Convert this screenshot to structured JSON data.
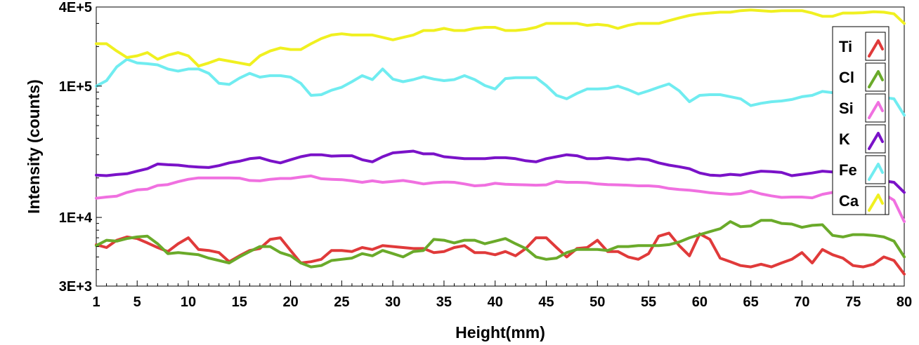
{
  "chart_data": {
    "type": "line",
    "title": "",
    "xlabel": "Height(mm)",
    "ylabel": "Intensity (counts)",
    "yscale": "log",
    "xlim": [
      1,
      80
    ],
    "ylim": [
      3000,
      400000
    ],
    "x_ticks": [
      1,
      5,
      10,
      15,
      20,
      25,
      30,
      35,
      40,
      45,
      50,
      55,
      60,
      65,
      70,
      75,
      80
    ],
    "y_ticks": [
      {
        "value": 3000,
        "label": "3E+3"
      },
      {
        "value": 10000,
        "label": "1E+4"
      },
      {
        "value": 100000,
        "label": "1E+5"
      },
      {
        "value": 400000,
        "label": "4E+5"
      }
    ],
    "legend_position": "right",
    "x": [
      1,
      2,
      3,
      4,
      5,
      6,
      7,
      8,
      9,
      10,
      11,
      12,
      13,
      14,
      15,
      16,
      17,
      18,
      19,
      20,
      21,
      22,
      23,
      24,
      25,
      26,
      27,
      28,
      29,
      30,
      31,
      32,
      33,
      34,
      35,
      36,
      37,
      38,
      39,
      40,
      41,
      42,
      43,
      44,
      45,
      46,
      47,
      48,
      49,
      50,
      51,
      52,
      53,
      54,
      55,
      56,
      57,
      58,
      59,
      60,
      61,
      62,
      63,
      64,
      65,
      66,
      67,
      68,
      69,
      70,
      71,
      72,
      73,
      74,
      75,
      76,
      77,
      78,
      79,
      80
    ],
    "series": [
      {
        "name": "Ti",
        "color": "#e03a3a",
        "values": [
          6200,
          5900,
          6700,
          7100,
          6900,
          6400,
          5900,
          5500,
          6300,
          7000,
          5700,
          5600,
          5400,
          4600,
          5100,
          5600,
          5800,
          6800,
          7000,
          5600,
          4500,
          4600,
          4800,
          5600,
          5600,
          5500,
          5900,
          5700,
          6100,
          6000,
          5900,
          5800,
          5800,
          5400,
          5500,
          5900,
          6100,
          5400,
          5400,
          5200,
          5500,
          5100,
          5800,
          7000,
          7000,
          5900,
          5000,
          5800,
          5900,
          6700,
          5500,
          5500,
          5000,
          4800,
          5300,
          7200,
          7600,
          6100,
          5100,
          7500,
          6800,
          4900,
          4600,
          4300,
          4200,
          4400,
          4200,
          4500,
          4800,
          5400,
          4500,
          5700,
          5200,
          4900,
          4300,
          4200,
          4400,
          5000,
          4700,
          3700
        ]
      },
      {
        "name": "Cl",
        "color": "#6aaa2a",
        "values": [
          6100,
          6700,
          6600,
          6900,
          7100,
          7200,
          6300,
          5300,
          5400,
          5300,
          5200,
          4900,
          4700,
          4500,
          5000,
          5500,
          6000,
          6000,
          5400,
          5100,
          4500,
          4200,
          4300,
          4700,
          4800,
          4900,
          5300,
          5100,
          5600,
          5300,
          5000,
          5500,
          5600,
          6800,
          6700,
          6400,
          6700,
          6700,
          6300,
          6600,
          6900,
          6300,
          5800,
          5000,
          4800,
          4900,
          5400,
          5700,
          5700,
          5700,
          5600,
          6000,
          6000,
          6100,
          6100,
          6100,
          6200,
          6500,
          7000,
          7400,
          7800,
          8200,
          9300,
          8500,
          8600,
          9500,
          9500,
          9000,
          8900,
          8400,
          8700,
          8800,
          7300,
          7100,
          7400,
          7400,
          7300,
          7100,
          6600,
          5000
        ]
      },
      {
        "name": "Si",
        "color": "#f070e0",
        "values": [
          14000,
          14300,
          14500,
          15500,
          16200,
          16400,
          17500,
          17800,
          18700,
          19500,
          20000,
          20000,
          20000,
          20000,
          19900,
          19100,
          19000,
          19500,
          19800,
          19800,
          20300,
          20700,
          19700,
          19500,
          19400,
          19000,
          18500,
          19000,
          18500,
          18800,
          19100,
          18600,
          18000,
          18400,
          18600,
          18500,
          18000,
          17400,
          17600,
          18200,
          17900,
          17800,
          17700,
          17600,
          17700,
          18800,
          18500,
          18500,
          18400,
          18000,
          17800,
          17700,
          17600,
          17400,
          17400,
          17200,
          16600,
          16300,
          16100,
          15800,
          15400,
          15200,
          15000,
          15200,
          15900,
          15100,
          14600,
          14200,
          14300,
          14300,
          14100,
          15000,
          15500,
          15900,
          15600,
          15500,
          15500,
          15100,
          13500,
          9300
        ]
      },
      {
        "name": "K",
        "color": "#7a12c8",
        "values": [
          21000,
          20800,
          21200,
          21500,
          22500,
          23500,
          25500,
          25200,
          25000,
          24500,
          24200,
          24000,
          24800,
          26000,
          26800,
          28000,
          28500,
          27000,
          26000,
          27500,
          29000,
          30000,
          30000,
          29300,
          29500,
          29500,
          27500,
          26500,
          29000,
          31000,
          31500,
          32000,
          30500,
          30500,
          29000,
          28500,
          28000,
          28000,
          28000,
          28500,
          28500,
          28000,
          27000,
          26500,
          28000,
          29000,
          30000,
          29500,
          28000,
          28000,
          28500,
          28000,
          27500,
          28000,
          27500,
          26000,
          25000,
          24300,
          23500,
          21800,
          21000,
          20800,
          21300,
          21000,
          21800,
          22500,
          22300,
          22000,
          20800,
          21300,
          21800,
          22500,
          22200,
          22200,
          21500,
          20500,
          20000,
          19000,
          18500,
          15500
        ]
      },
      {
        "name": "Fe",
        "color": "#70ecf0",
        "values": [
          100000,
          110000,
          140000,
          160000,
          150000,
          148000,
          145000,
          135000,
          130000,
          135000,
          135000,
          125000,
          105000,
          103000,
          115000,
          125000,
          117000,
          120000,
          120000,
          117000,
          105000,
          85000,
          86000,
          93000,
          98000,
          108000,
          120000,
          112000,
          135000,
          113000,
          108000,
          112000,
          118000,
          113000,
          110000,
          112000,
          120000,
          112000,
          101000,
          95000,
          114000,
          116000,
          116000,
          116000,
          101000,
          85000,
          80000,
          88000,
          95000,
          95000,
          96000,
          100000,
          94000,
          87000,
          92000,
          98000,
          104000,
          92000,
          76000,
          85000,
          86000,
          86000,
          83000,
          80000,
          71000,
          74000,
          76000,
          77000,
          79000,
          83000,
          85000,
          91000,
          89000,
          85000,
          83000,
          82000,
          82000,
          82000,
          80000,
          60000
        ]
      },
      {
        "name": "Ca",
        "color": "#f0f020",
        "values": [
          210000,
          210000,
          185000,
          165000,
          170000,
          180000,
          160000,
          172000,
          180000,
          170000,
          142000,
          150000,
          160000,
          155000,
          150000,
          145000,
          170000,
          185000,
          195000,
          190000,
          190000,
          210000,
          230000,
          245000,
          250000,
          245000,
          245000,
          245000,
          235000,
          225000,
          235000,
          245000,
          265000,
          265000,
          275000,
          265000,
          265000,
          275000,
          280000,
          280000,
          265000,
          265000,
          270000,
          280000,
          300000,
          300000,
          300000,
          300000,
          290000,
          295000,
          290000,
          275000,
          290000,
          300000,
          300000,
          300000,
          315000,
          330000,
          345000,
          355000,
          360000,
          365000,
          365000,
          375000,
          380000,
          375000,
          370000,
          375000,
          375000,
          375000,
          360000,
          340000,
          340000,
          360000,
          360000,
          362000,
          368000,
          365000,
          355000,
          300000
        ]
      }
    ]
  }
}
